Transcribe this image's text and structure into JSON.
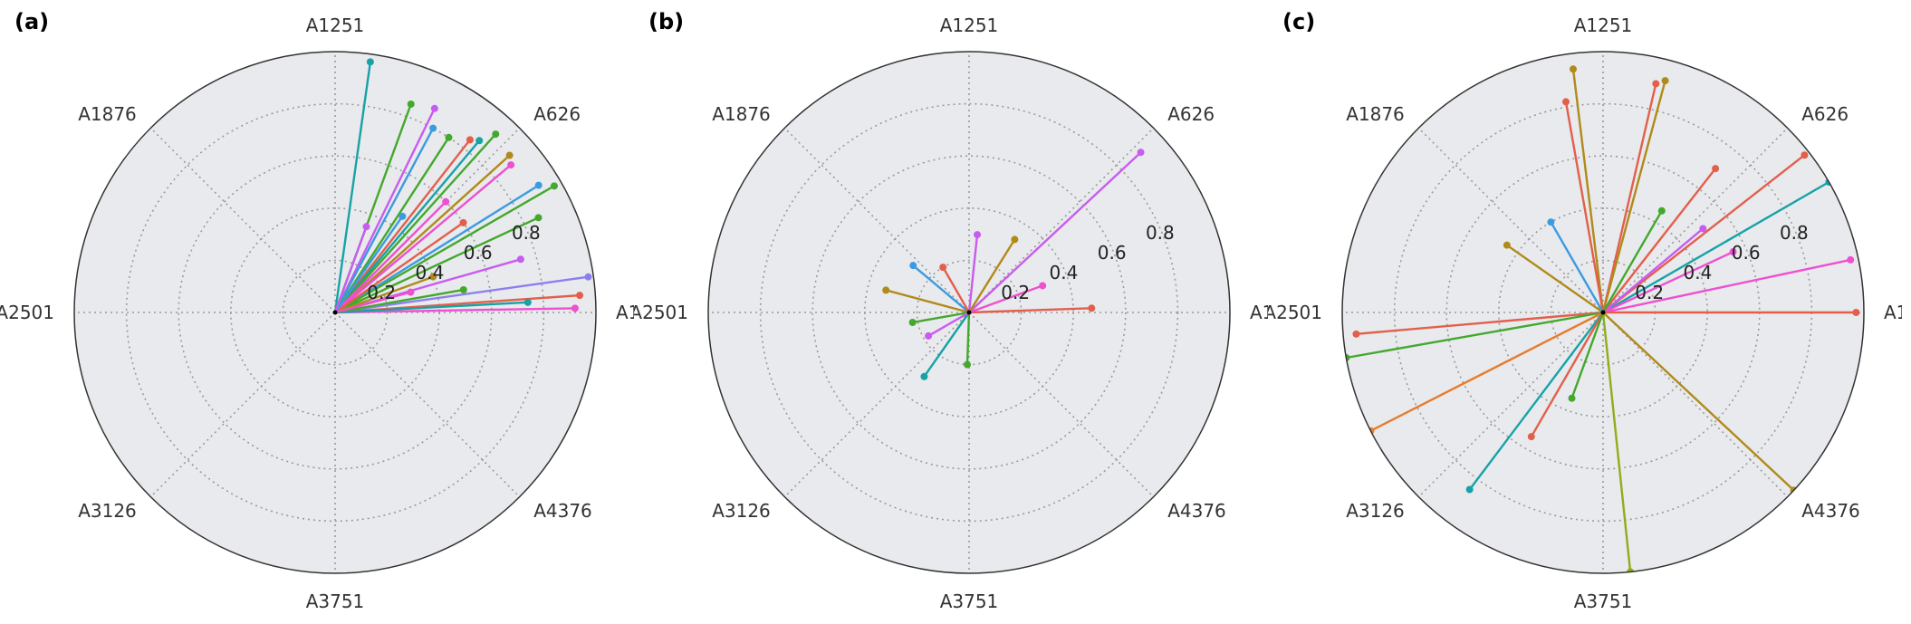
{
  "figure": {
    "panels": [
      {
        "label": "(a)"
      },
      {
        "label": "(b)"
      },
      {
        "label": "(c)"
      }
    ]
  },
  "chart_data": [
    {
      "type": "polar-line",
      "panel": "(a)",
      "angular_tick_labels": [
        "A1",
        "A626",
        "A1251",
        "A1876",
        "A2501",
        "A3126",
        "A3751",
        "A4376"
      ],
      "radial_tick_labels": [
        "0.2",
        "0.4",
        "0.6",
        "0.8"
      ],
      "rlim": [
        0,
        1.0
      ],
      "grid": true,
      "background": "#e8eaed",
      "series": [
        {
          "color": "#17a2a6",
          "points": [
            [
              0.97,
              82
            ]
          ]
        },
        {
          "color": "#44a82d",
          "points": [
            [
              0.85,
              70
            ]
          ]
        },
        {
          "color": "#c85cf0",
          "points": [
            [
              0.87,
              64
            ]
          ]
        },
        {
          "color": "#3b9be0",
          "points": [
            [
              0.8,
              62
            ]
          ]
        },
        {
          "color": "#44a82d",
          "points": [
            [
              0.8,
              57
            ]
          ]
        },
        {
          "color": "#e35f4c",
          "points": [
            [
              0.84,
              52
            ]
          ]
        },
        {
          "color": "#17a2a6",
          "points": [
            [
              0.86,
              50
            ]
          ]
        },
        {
          "color": "#44a82d",
          "points": [
            [
              0.92,
              48
            ]
          ]
        },
        {
          "color": "#b08a1a",
          "points": [
            [
              0.9,
              42
            ]
          ]
        },
        {
          "color": "#ef4fd0",
          "points": [
            [
              0.88,
              40
            ]
          ]
        },
        {
          "color": "#3b9be0",
          "points": [
            [
              0.92,
              32
            ]
          ]
        },
        {
          "color": "#44a82d",
          "points": [
            [
              0.97,
              30
            ]
          ]
        },
        {
          "color": "#44a82d",
          "points": [
            [
              0.86,
              25
            ]
          ]
        },
        {
          "color": "#ef4fd0",
          "points": [
            [
              0.6,
              45
            ]
          ]
        },
        {
          "color": "#c85cf0",
          "points": [
            [
              0.74,
              16
            ]
          ]
        },
        {
          "color": "#8b7ff0",
          "points": [
            [
              0.98,
              8
            ]
          ]
        },
        {
          "color": "#e35f4c",
          "points": [
            [
              0.94,
              4
            ]
          ]
        },
        {
          "color": "#ef4fd0",
          "points": [
            [
              0.92,
              1
            ]
          ]
        },
        {
          "color": "#17a2a6",
          "points": [
            [
              0.74,
              3
            ]
          ]
        },
        {
          "color": "#44a82d",
          "points": [
            [
              0.5,
              10
            ]
          ]
        },
        {
          "color": "#e35f4c",
          "points": [
            [
              0.6,
              35
            ]
          ]
        },
        {
          "color": "#3b9be0",
          "points": [
            [
              0.45,
              55
            ]
          ]
        },
        {
          "color": "#c85cf0",
          "points": [
            [
              0.35,
              70
            ]
          ]
        },
        {
          "color": "#b08a1a",
          "points": [
            [
              0.4,
              20
            ]
          ]
        },
        {
          "color": "#ef4fd0",
          "points": [
            [
              0.3,
              15
            ]
          ]
        }
      ]
    },
    {
      "type": "polar-line",
      "panel": "(b)",
      "angular_tick_labels": [
        "A1",
        "A626",
        "A1251",
        "A1876",
        "A2501",
        "A3126",
        "A3751",
        "A4376"
      ],
      "radial_tick_labels": [
        "0.2",
        "0.4",
        "0.6",
        "0.8"
      ],
      "rlim": [
        0,
        1.0
      ],
      "grid": true,
      "background": "#e8eaed",
      "series": [
        {
          "color": "#c85cf0",
          "points": [
            [
              0.9,
              43
            ]
          ]
        },
        {
          "color": "#e35f4c",
          "points": [
            [
              0.47,
              2
            ]
          ]
        },
        {
          "color": "#c85cf0",
          "points": [
            [
              0.3,
              84
            ]
          ]
        },
        {
          "color": "#b08a1a",
          "points": [
            [
              0.33,
              58
            ]
          ]
        },
        {
          "color": "#ef4fd0",
          "points": [
            [
              0.3,
              20
            ]
          ]
        },
        {
          "color": "#3b9be0",
          "points": [
            [
              0.28,
              140
            ]
          ]
        },
        {
          "color": "#b08a1a",
          "points": [
            [
              0.33,
              165
            ]
          ]
        },
        {
          "color": "#17a2a6",
          "points": [
            [
              0.3,
              235
            ]
          ]
        },
        {
          "color": "#44a82d",
          "points": [
            [
              0.2,
              268
            ]
          ]
        },
        {
          "color": "#e35f4c",
          "points": [
            [
              0.2,
              120
            ]
          ]
        },
        {
          "color": "#44a82d",
          "points": [
            [
              0.22,
              190
            ]
          ]
        },
        {
          "color": "#c85cf0",
          "points": [
            [
              0.18,
              210
            ]
          ]
        }
      ]
    },
    {
      "type": "polar-line",
      "panel": "(c)",
      "angular_tick_labels": [
        "A1",
        "A626",
        "A1251",
        "A1876",
        "A2501",
        "A3126",
        "A3751",
        "A4376"
      ],
      "radial_tick_labels": [
        "0.2",
        "0.4",
        "0.6",
        "0.8"
      ],
      "rlim": [
        0,
        1.0
      ],
      "grid": true,
      "background": "#e8eaed",
      "series": [
        {
          "color": "#b08a1a",
          "points": [
            [
              0.94,
              97
            ]
          ]
        },
        {
          "color": "#e35f4c",
          "points": [
            [
              0.82,
              100
            ]
          ]
        },
        {
          "color": "#e35f4c",
          "points": [
            [
              0.9,
              77
            ]
          ]
        },
        {
          "color": "#b08a1a",
          "points": [
            [
              0.92,
              75
            ]
          ]
        },
        {
          "color": "#e35f4c",
          "points": [
            [
              0.7,
              52
            ]
          ]
        },
        {
          "color": "#e35f4c",
          "points": [
            [
              0.98,
              38
            ]
          ]
        },
        {
          "color": "#17a2a6",
          "points": [
            [
              1.0,
              30
            ]
          ]
        },
        {
          "color": "#ef4fd0",
          "points": [
            [
              0.97,
              12
            ]
          ]
        },
        {
          "color": "#e35f4c",
          "points": [
            [
              0.97,
              0
            ]
          ]
        },
        {
          "color": "#e35f4c",
          "points": [
            [
              0.95,
              185
            ]
          ]
        },
        {
          "color": "#44a82d",
          "points": [
            [
              1.0,
              190
            ]
          ]
        },
        {
          "color": "#e87b2b",
          "points": [
            [
              1.05,
              207
            ]
          ]
        },
        {
          "color": "#17a2a6",
          "points": [
            [
              0.85,
              233
            ]
          ]
        },
        {
          "color": "#e35f4c",
          "points": [
            [
              0.55,
              240
            ]
          ]
        },
        {
          "color": "#8fad1a",
          "points": [
            [
              1.02,
              276
            ]
          ]
        },
        {
          "color": "#b08a1a",
          "points": [
            [
              1.0,
              317
            ]
          ]
        },
        {
          "color": "#b08a1a",
          "points": [
            [
              0.45,
              145
            ]
          ]
        },
        {
          "color": "#c85cf0",
          "points": [
            [
              0.5,
              40
            ]
          ]
        },
        {
          "color": "#ef4fd0",
          "points": [
            [
              0.55,
              25
            ]
          ]
        },
        {
          "color": "#44a82d",
          "points": [
            [
              0.45,
              60
            ]
          ]
        },
        {
          "color": "#3b9be0",
          "points": [
            [
              0.4,
              120
            ]
          ]
        },
        {
          "color": "#44a82d",
          "points": [
            [
              0.35,
              250
            ]
          ]
        }
      ]
    }
  ]
}
